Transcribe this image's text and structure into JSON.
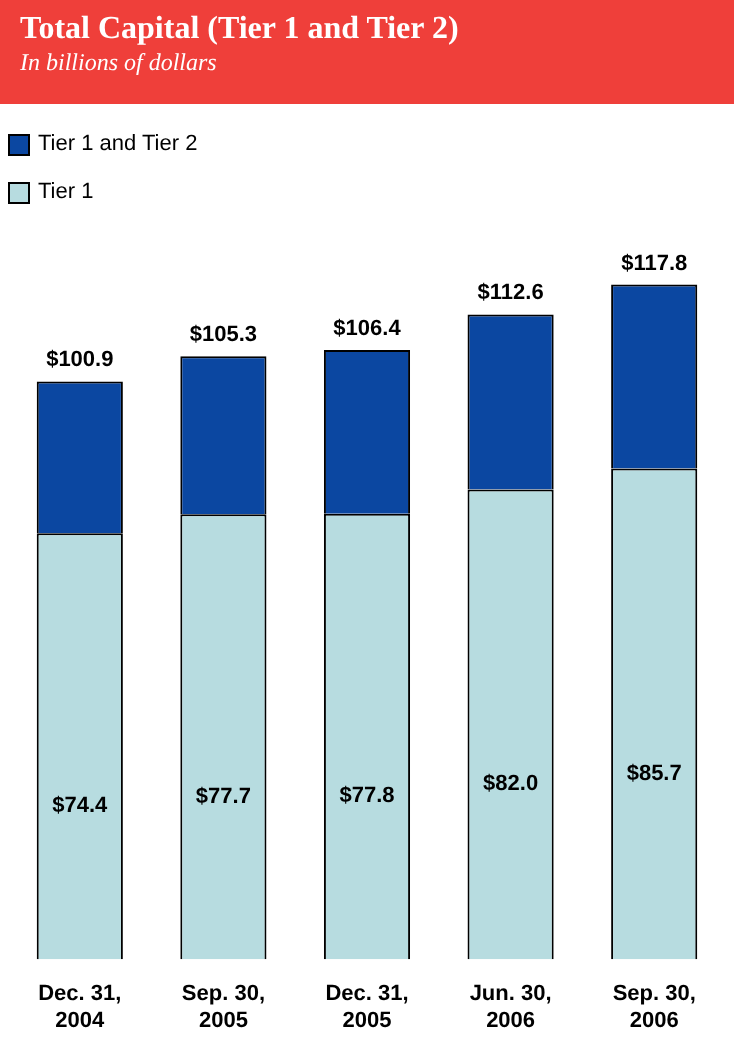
{
  "chart_data": {
    "type": "bar",
    "title": "Total Capital (Tier 1 and Tier 2)",
    "subtitle": "In billions of dollars",
    "categories": [
      "Dec. 31, 2004",
      "Sep. 30, 2005",
      "Dec. 31, 2005",
      "Jun. 30, 2006",
      "Sep. 30, 2006"
    ],
    "stacked": true,
    "legend": "top left",
    "series": [
      {
        "name": "Tier 1",
        "color": "#b7dce0",
        "values": [
          74.4,
          77.7,
          77.8,
          82.0,
          85.7
        ],
        "value_labels": [
          "$74.4",
          "$77.7",
          "$77.8",
          "$82.0",
          "$85.7"
        ]
      },
      {
        "name": "Tier 1 and Tier 2",
        "color": "#0b47a1",
        "values": [
          26.5,
          27.6,
          28.6,
          30.6,
          32.1
        ]
      }
    ],
    "totals": [
      "$100.9",
      "$105.3",
      "$106.4",
      "$112.6",
      "$117.8"
    ]
  }
}
